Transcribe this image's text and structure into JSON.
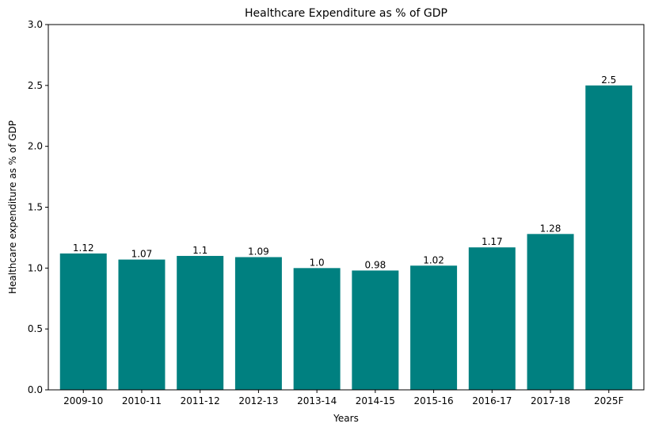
{
  "chart_data": {
    "type": "bar",
    "title": "Healthcare Expenditure as % of GDP",
    "xlabel": "Years",
    "ylabel": "Healthcare expenditure as % of GDP",
    "categories": [
      "2009-10",
      "2010-11",
      "2011-12",
      "2012-13",
      "2013-14",
      "2014-15",
      "2015-16",
      "2016-17",
      "2017-18",
      "2025F"
    ],
    "values": [
      1.12,
      1.07,
      1.1,
      1.09,
      1.0,
      0.98,
      1.02,
      1.17,
      1.28,
      2.5
    ],
    "value_labels": [
      "1.12",
      "1.07",
      "1.1",
      "1.09",
      "1.0",
      "0.98",
      "1.02",
      "1.17",
      "1.28",
      "2.5"
    ],
    "ylim": [
      0,
      3.0
    ],
    "yticks": [
      0,
      0.5,
      1.0,
      1.5,
      2.0,
      2.5,
      3.0
    ],
    "ytick_labels": [
      "0.0",
      "0.5",
      "1.0",
      "1.5",
      "2.0",
      "2.5",
      "3.0"
    ],
    "grid": false,
    "bar_color": "#008080"
  }
}
